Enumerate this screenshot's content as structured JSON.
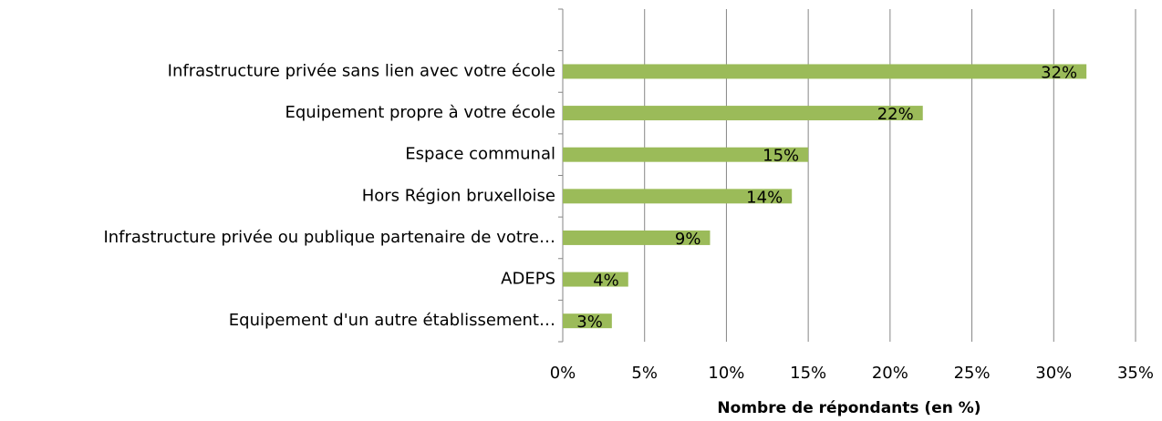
{
  "chart_data": {
    "type": "bar",
    "orientation": "horizontal",
    "categories": [
      null,
      "Infrastructure privée sans lien avec votre école",
      "Equipement propre à votre école",
      "Espace communal",
      "Hors Région bruxelloise",
      "Infrastructure privée ou publique partenaire de votre…",
      "ADEPS",
      "Equipement d'un autre établissement…"
    ],
    "values": [
      null,
      32,
      22,
      15,
      14,
      9,
      4,
      3
    ],
    "value_labels": [
      null,
      "32%",
      "22%",
      "15%",
      "14%",
      "9%",
      "4%",
      "3%"
    ],
    "color": "#9bbb59",
    "xlabel": "Nombre de répondants (en %)",
    "xlim": [
      0,
      35
    ],
    "xticks": [
      {
        "value": 0,
        "label": "0%"
      },
      {
        "value": 5,
        "label": "5%"
      },
      {
        "value": 10,
        "label": "10%"
      },
      {
        "value": 15,
        "label": "15%"
      },
      {
        "value": 20,
        "label": "20%"
      },
      {
        "value": 25,
        "label": "25%"
      },
      {
        "value": 30,
        "label": "30%"
      },
      {
        "value": 35,
        "label": "35%"
      }
    ],
    "grid": true
  }
}
